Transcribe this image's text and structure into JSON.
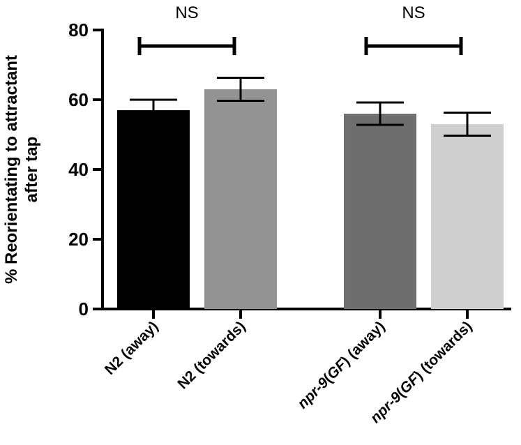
{
  "chart_data": {
    "type": "bar",
    "title": "",
    "ylabel_lines": [
      "% Reorientating to attractant",
      "after tap"
    ],
    "xlabel": "",
    "ylim": [
      0,
      80
    ],
    "yticks": [
      0,
      20,
      40,
      60,
      80
    ],
    "grid": false,
    "categories": [
      {
        "parts": [
          {
            "text": "N2 (away)",
            "italic": false
          }
        ]
      },
      {
        "parts": [
          {
            "text": "N2 (towards)",
            "italic": false
          }
        ]
      },
      {
        "parts": [
          {
            "text": "npr-9",
            "italic": true
          },
          {
            "text": "(",
            "italic": false
          },
          {
            "text": "GF",
            "italic": true
          },
          {
            "text": ") (away)",
            "italic": false
          }
        ]
      },
      {
        "parts": [
          {
            "text": "npr-9",
            "italic": true
          },
          {
            "text": "(",
            "italic": false
          },
          {
            "text": "GF",
            "italic": true
          },
          {
            "text": ") (towards)",
            "italic": false
          }
        ]
      }
    ],
    "values": [
      57,
      63,
      56,
      53
    ],
    "errors": [
      3,
      3.3,
      3.2,
      3.3
    ],
    "colors": [
      "#000000",
      "#939393",
      "#6f6f6f",
      "#cfcfcf"
    ],
    "comparisons": [
      {
        "from": 0,
        "to": 1,
        "label": "NS"
      },
      {
        "from": 2,
        "to": 3,
        "label": "NS"
      }
    ]
  }
}
